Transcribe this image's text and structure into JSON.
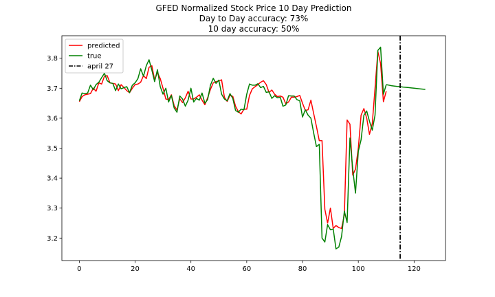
{
  "chart_data": {
    "type": "line",
    "title_lines": [
      "GFED Normalized Stock Price 10 Day Prediction",
      "Day to Day accuracy: 73%",
      "10 day accuracy: 50%"
    ],
    "xlabel": "",
    "ylabel": "",
    "xlim": [
      -6.25,
      131.25
    ],
    "ylim": [
      3.125,
      3.875
    ],
    "xticks": [
      0,
      20,
      40,
      60,
      80,
      100,
      120
    ],
    "yticks": [
      3.2,
      3.3,
      3.4,
      3.5,
      3.6,
      3.7,
      3.8
    ],
    "grid": false,
    "legend_position": "top-left",
    "series": [
      {
        "name": "predicted",
        "color": "#ff0000",
        "x_start": 0,
        "values": [
          3.655,
          3.672,
          3.678,
          3.68,
          3.682,
          3.7,
          3.69,
          3.718,
          3.714,
          3.74,
          3.742,
          3.718,
          3.716,
          3.714,
          3.692,
          3.712,
          3.702,
          3.692,
          3.685,
          3.7,
          3.712,
          3.714,
          3.72,
          3.742,
          3.732,
          3.77,
          3.775,
          3.728,
          3.752,
          3.732,
          3.7,
          3.664,
          3.662,
          3.678,
          3.642,
          3.627,
          3.665,
          3.652,
          3.668,
          3.69,
          3.664,
          3.664,
          3.67,
          3.678,
          3.66,
          3.645,
          3.668,
          3.696,
          3.718,
          3.722,
          3.724,
          3.728,
          3.67,
          3.656,
          3.676,
          3.673,
          3.64,
          3.622,
          3.614,
          3.63,
          3.63,
          3.676,
          3.698,
          3.705,
          3.712,
          3.72,
          3.725,
          3.712,
          3.686,
          3.694,
          3.68,
          3.672,
          3.674,
          3.67,
          3.648,
          3.654,
          3.67,
          3.67,
          3.672,
          3.676,
          3.65,
          3.626,
          3.628,
          3.66,
          3.615,
          3.572,
          3.525,
          3.525,
          3.296,
          3.25,
          3.3,
          3.232,
          3.242,
          3.235,
          3.232,
          3.278,
          3.594,
          3.58,
          3.41,
          3.43,
          3.5,
          3.61,
          3.632,
          3.6,
          3.546,
          3.582,
          3.7,
          3.823,
          3.782,
          3.655,
          3.69
        ],
        "forecast_x_start": 110,
        "forecast_values": []
      },
      {
        "name": "true",
        "color": "#008000",
        "x_start": 0,
        "values": [
          3.658,
          3.684,
          3.682,
          3.684,
          3.71,
          3.695,
          3.712,
          3.72,
          3.735,
          3.75,
          3.725,
          3.718,
          3.716,
          3.692,
          3.714,
          3.698,
          3.702,
          3.705,
          3.685,
          3.71,
          3.718,
          3.732,
          3.765,
          3.74,
          3.775,
          3.795,
          3.76,
          3.722,
          3.762,
          3.705,
          3.68,
          3.7,
          3.654,
          3.676,
          3.634,
          3.62,
          3.674,
          3.664,
          3.64,
          3.66,
          3.7,
          3.654,
          3.666,
          3.66,
          3.684,
          3.65,
          3.662,
          3.71,
          3.733,
          3.716,
          3.727,
          3.68,
          3.664,
          3.658,
          3.682,
          3.666,
          3.626,
          3.62,
          3.63,
          3.628,
          3.68,
          3.714,
          3.71,
          3.71,
          3.715,
          3.702,
          3.706,
          3.686,
          3.688,
          3.666,
          3.675,
          3.668,
          3.67,
          3.64,
          3.644,
          3.675,
          3.674,
          3.674,
          3.662,
          3.658,
          3.604,
          3.628,
          3.61,
          3.6,
          3.55,
          3.505,
          3.513,
          3.2,
          3.187,
          3.245,
          3.228,
          3.23,
          3.164,
          3.17,
          3.205,
          3.29,
          3.252,
          3.534,
          3.43,
          3.35,
          3.49,
          3.528,
          3.61,
          3.624,
          3.59,
          3.56,
          3.61,
          3.826,
          3.837,
          3.68,
          3.712
        ],
        "forecast_x_start": 110,
        "forecast_values": [
          3.712,
          3.71,
          3.708,
          3.707,
          3.706,
          3.705,
          3.704,
          3.703,
          3.702,
          3.701,
          3.7,
          3.699,
          3.698,
          3.697,
          3.696
        ]
      }
    ],
    "vline": {
      "name": "april 27",
      "x": 115,
      "color": "#000000",
      "style": "dashdot"
    }
  }
}
